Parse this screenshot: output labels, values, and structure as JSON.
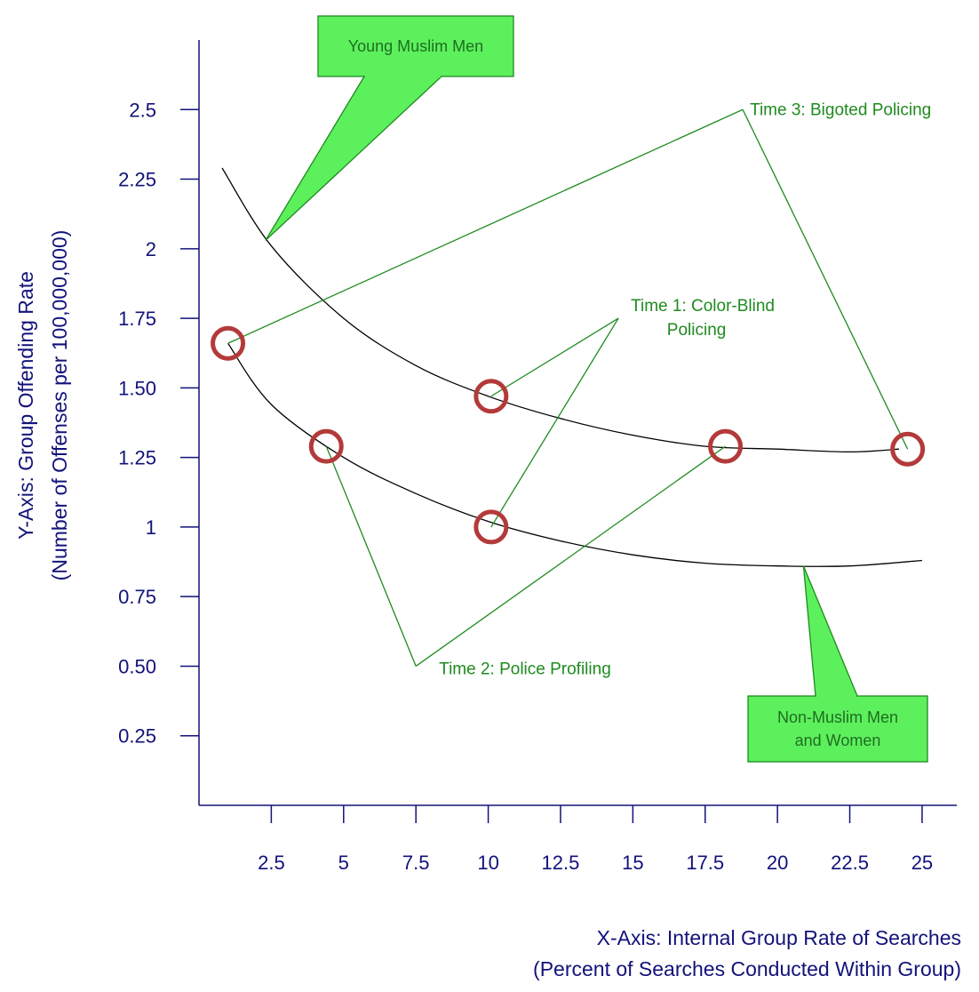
{
  "chart_data": {
    "type": "line",
    "xlabel_line1": "X-Axis:  Internal Group Rate of Searches",
    "xlabel_line2": "(Percent of Searches Conducted Within Group)",
    "ylabel_line1": "Y-Axis: Group Offending Rate",
    "ylabel_line2": "(Number of Offenses per 100,000,000)",
    "xlim": [
      0,
      26.2
    ],
    "ylim": [
      0,
      2.75
    ],
    "x_ticks": [
      2.5,
      5,
      7.5,
      10,
      12.5,
      15,
      17.5,
      20,
      22.5,
      25
    ],
    "x_tick_labels": [
      "2.5",
      "5",
      "7.5",
      "10",
      "12.5",
      "15",
      "17.5",
      "20",
      "22.5",
      "25"
    ],
    "y_ticks": [
      0.25,
      0.5,
      0.75,
      1,
      1.25,
      1.5,
      1.75,
      2,
      2.25,
      2.5
    ],
    "y_tick_labels": [
      "0.25",
      "0.50",
      "0.75",
      "1",
      "1.25",
      "1.50",
      "1.75",
      "2",
      "2.25",
      "2.5"
    ],
    "series": [
      {
        "name": "Young Muslim Men",
        "x": [
          0.8,
          2.5,
          5.0,
          7.5,
          10.0,
          12.5,
          15.0,
          17.5,
          20.0,
          22.5,
          24.2
        ],
        "y": [
          2.29,
          2.01,
          1.75,
          1.58,
          1.47,
          1.39,
          1.33,
          1.29,
          1.28,
          1.27,
          1.28
        ]
      },
      {
        "name": "Non-Muslim Men and Women",
        "x": [
          1.0,
          2.5,
          5.0,
          7.5,
          10.0,
          12.5,
          15.0,
          17.5,
          20.0,
          22.5,
          25.0
        ],
        "y": [
          1.66,
          1.44,
          1.25,
          1.12,
          1.02,
          0.95,
          0.9,
          0.87,
          0.86,
          0.86,
          0.88
        ]
      }
    ],
    "points": [
      {
        "x": 1.0,
        "y": 1.66
      },
      {
        "x": 4.4,
        "y": 1.29
      },
      {
        "x": 10.1,
        "y": 1.47
      },
      {
        "x": 10.1,
        "y": 1.0
      },
      {
        "x": 18.2,
        "y": 1.29
      },
      {
        "x": 24.5,
        "y": 1.28
      }
    ],
    "annotations": [
      {
        "lines": [
          "Time 1:  Color-Blind",
          "Policing"
        ],
        "at": {
          "x": 14.5,
          "y": 1.75
        },
        "targets": [
          {
            "x": 10.1,
            "y": 1.47
          },
          {
            "x": 10.1,
            "y": 1.0
          }
        ]
      },
      {
        "lines": [
          "Time 2:  Police Profiling"
        ],
        "at": {
          "x": 7.5,
          "y": 0.5
        },
        "targets": [
          {
            "x": 4.4,
            "y": 1.29
          },
          {
            "x": 18.2,
            "y": 1.29
          }
        ]
      },
      {
        "lines": [
          "Time 3:  Bigoted Policing"
        ],
        "at": {
          "x": 18.8,
          "y": 2.5
        },
        "targets": [
          {
            "x": 1.0,
            "y": 1.66
          },
          {
            "x": 24.5,
            "y": 1.28
          }
        ]
      }
    ],
    "callouts": [
      {
        "lines": [
          "Young Muslim Men"
        ],
        "points_to": {
          "x": 2.3,
          "y": 2.03
        }
      },
      {
        "lines": [
          "Non-Muslim Men",
          "and Women"
        ],
        "points_to": {
          "x": 20.9,
          "y": 0.86
        }
      }
    ],
    "colors": {
      "axis": "#12127a",
      "curve": "#000000",
      "annotation": "#1f8a1f",
      "marker": "#b33a3a",
      "callout_fill": "#5df05d",
      "callout_stroke": "#1f8a1f"
    }
  }
}
